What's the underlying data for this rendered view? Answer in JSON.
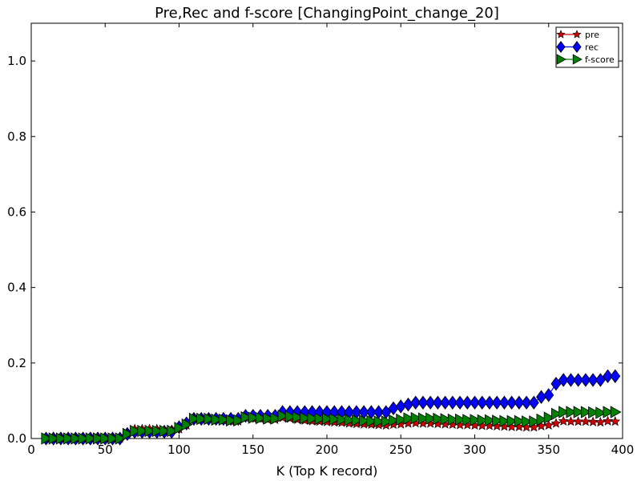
{
  "chart_data": {
    "type": "line",
    "title": "Pre,Rec and f-score [ChangingPoint_change_20]",
    "xlabel": "K (Top K record)",
    "ylabel": "",
    "xlim": [
      0,
      400
    ],
    "ylim": [
      0,
      1.1
    ],
    "xticks": [
      0,
      50,
      100,
      150,
      200,
      250,
      300,
      350,
      400
    ],
    "yticks": [
      0.0,
      0.2,
      0.4,
      0.6,
      0.8,
      1.0
    ],
    "xtick_labels": [
      "0",
      "50",
      "100",
      "150",
      "200",
      "250",
      "300",
      "350",
      "400"
    ],
    "ytick_labels": [
      "0.0",
      "0.2",
      "0.4",
      "0.6",
      "0.8",
      "1.0"
    ],
    "grid": false,
    "legend_position": "top-right",
    "x": [
      10,
      15,
      20,
      25,
      30,
      35,
      40,
      45,
      50,
      55,
      60,
      65,
      70,
      75,
      80,
      85,
      90,
      95,
      100,
      105,
      110,
      115,
      120,
      125,
      130,
      135,
      140,
      145,
      150,
      155,
      160,
      165,
      170,
      175,
      180,
      185,
      190,
      195,
      200,
      205,
      210,
      215,
      220,
      225,
      230,
      235,
      240,
      245,
      250,
      255,
      260,
      265,
      270,
      275,
      280,
      285,
      290,
      295,
      300,
      305,
      310,
      315,
      320,
      325,
      330,
      335,
      340,
      345,
      350,
      355,
      360,
      365,
      370,
      375,
      380,
      385,
      390,
      395
    ],
    "series": [
      {
        "name": "rec",
        "color": "#0000ff",
        "marker": "diamond",
        "values": [
          0,
          0,
          0,
          0,
          0,
          0,
          0,
          0,
          0,
          0,
          0,
          0.012,
          0.018,
          0.018,
          0.018,
          0.018,
          0.018,
          0.018,
          0.03,
          0.04,
          0.052,
          0.052,
          0.052,
          0.052,
          0.052,
          0.052,
          0.052,
          0.06,
          0.06,
          0.06,
          0.06,
          0.06,
          0.07,
          0.07,
          0.07,
          0.07,
          0.07,
          0.07,
          0.07,
          0.07,
          0.07,
          0.07,
          0.07,
          0.07,
          0.07,
          0.07,
          0.07,
          0.08,
          0.085,
          0.09,
          0.095,
          0.095,
          0.095,
          0.095,
          0.095,
          0.095,
          0.095,
          0.095,
          0.095,
          0.095,
          0.095,
          0.095,
          0.095,
          0.095,
          0.095,
          0.095,
          0.095,
          0.11,
          0.115,
          0.145,
          0.155,
          0.155,
          0.155,
          0.155,
          0.155,
          0.155,
          0.165,
          0.165
        ]
      },
      {
        "name": "pre",
        "color": "#cc0000",
        "marker": "star",
        "values": [
          0,
          0,
          0,
          0,
          0,
          0,
          0,
          0,
          0,
          0,
          0,
          0.012,
          0.025,
          0.025,
          0.025,
          0.025,
          0.022,
          0.022,
          0.025,
          0.035,
          0.052,
          0.052,
          0.052,
          0.05,
          0.048,
          0.046,
          0.046,
          0.055,
          0.053,
          0.052,
          0.05,
          0.05,
          0.055,
          0.053,
          0.05,
          0.048,
          0.046,
          0.045,
          0.044,
          0.043,
          0.042,
          0.04,
          0.039,
          0.038,
          0.037,
          0.036,
          0.035,
          0.037,
          0.038,
          0.04,
          0.041,
          0.04,
          0.04,
          0.039,
          0.038,
          0.037,
          0.036,
          0.036,
          0.035,
          0.034,
          0.034,
          0.033,
          0.032,
          0.031,
          0.031,
          0.03,
          0.03,
          0.033,
          0.035,
          0.04,
          0.046,
          0.045,
          0.045,
          0.045,
          0.044,
          0.043,
          0.046,
          0.045
        ]
      },
      {
        "name": "f-score",
        "color": "#008000",
        "marker": "triangle-right",
        "values": [
          0,
          0,
          0,
          0,
          0,
          0,
          0,
          0,
          0,
          0,
          0,
          0.012,
          0.02,
          0.02,
          0.02,
          0.02,
          0.02,
          0.02,
          0.028,
          0.037,
          0.052,
          0.052,
          0.052,
          0.05,
          0.05,
          0.048,
          0.048,
          0.056,
          0.055,
          0.054,
          0.053,
          0.053,
          0.06,
          0.058,
          0.056,
          0.054,
          0.053,
          0.052,
          0.052,
          0.051,
          0.05,
          0.049,
          0.048,
          0.047,
          0.046,
          0.045,
          0.045,
          0.048,
          0.05,
          0.053,
          0.054,
          0.053,
          0.053,
          0.052,
          0.051,
          0.05,
          0.05,
          0.049,
          0.049,
          0.048,
          0.048,
          0.047,
          0.046,
          0.046,
          0.046,
          0.045,
          0.045,
          0.05,
          0.055,
          0.065,
          0.07,
          0.07,
          0.07,
          0.07,
          0.069,
          0.068,
          0.07,
          0.07
        ]
      }
    ],
    "legend": [
      {
        "name": "pre",
        "label": "pre",
        "color": "#cc0000",
        "marker": "star"
      },
      {
        "name": "rec",
        "label": "rec",
        "color": "#0000ff",
        "marker": "diamond"
      },
      {
        "name": "f-score",
        "label": "f-score",
        "color": "#008000",
        "marker": "triangle-right"
      }
    ]
  }
}
